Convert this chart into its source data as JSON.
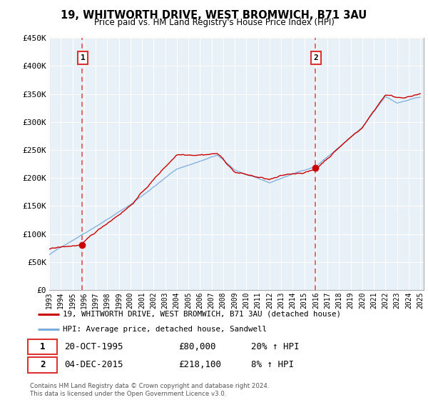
{
  "title": "19, WHITWORTH DRIVE, WEST BROMWICH, B71 3AU",
  "subtitle": "Price paid vs. HM Land Registry's House Price Index (HPI)",
  "legend_line1": "19, WHITWORTH DRIVE, WEST BROMWICH, B71 3AU (detached house)",
  "legend_line2": "HPI: Average price, detached house, Sandwell",
  "annotation1_label": "1",
  "annotation1_date": "20-OCT-1995",
  "annotation1_price": "£80,000",
  "annotation1_hpi": "20% ↑ HPI",
  "annotation2_label": "2",
  "annotation2_date": "04-DEC-2015",
  "annotation2_price": "£218,100",
  "annotation2_hpi": "8% ↑ HPI",
  "footnote": "Contains HM Land Registry data © Crown copyright and database right 2024.\nThis data is licensed under the Open Government Licence v3.0.",
  "ylim": [
    0,
    450000
  ],
  "yticks": [
    0,
    50000,
    100000,
    150000,
    200000,
    250000,
    300000,
    350000,
    400000,
    450000
  ],
  "ytick_labels": [
    "£0",
    "£50K",
    "£100K",
    "£150K",
    "£200K",
    "£250K",
    "£300K",
    "£350K",
    "£400K",
    "£450K"
  ],
  "sale1_year": 1995.8,
  "sale1_value": 80000,
  "sale2_year": 2015.92,
  "sale2_value": 218100,
  "hpi_color": "#7aaddc",
  "price_color": "#cc0000",
  "dashed_color": "#dd3333",
  "bg_color": "#dce9f5",
  "grid_color": "#b0c8e0",
  "plot_bg": "#e8f0f8"
}
